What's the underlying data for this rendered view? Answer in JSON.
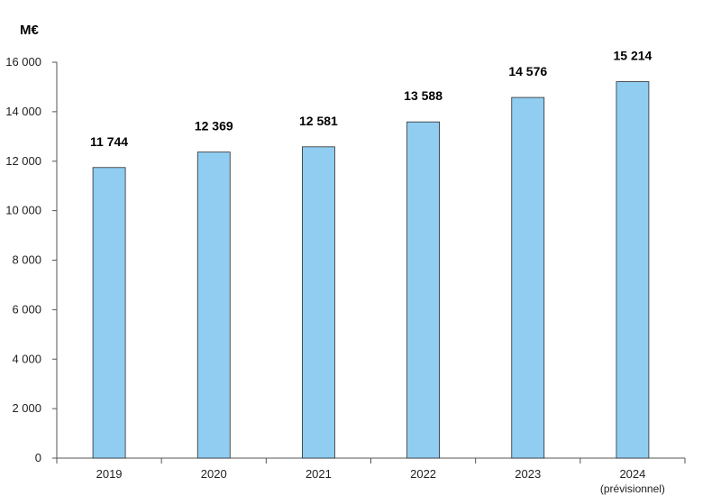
{
  "chart_data": {
    "type": "bar",
    "unit_label": "M€",
    "categories": [
      "2019",
      "2020",
      "2021",
      "2022",
      "2023",
      "2024"
    ],
    "category_sublabels": [
      "",
      "",
      "",
      "",
      "",
      "(prévisionnel)"
    ],
    "values": [
      11744,
      12369,
      12581,
      13588,
      14576,
      15214
    ],
    "value_labels": [
      "11 744",
      "12 369",
      "12 581",
      "13 588",
      "14 576",
      "15 214"
    ],
    "y_ticks": [
      0,
      2000,
      4000,
      6000,
      8000,
      10000,
      12000,
      14000,
      16000
    ],
    "y_tick_labels": [
      "0",
      "2 000",
      "4 000",
      "6 000",
      "8 000",
      "10 000",
      "12 000",
      "14 000",
      "16 000"
    ],
    "ylim": [
      0,
      16000
    ],
    "grid": false,
    "legend": "none",
    "colors": {
      "bar_fill": "#90cdf1",
      "bar_stroke": "#2b2b2b",
      "axis": "#555555"
    }
  }
}
